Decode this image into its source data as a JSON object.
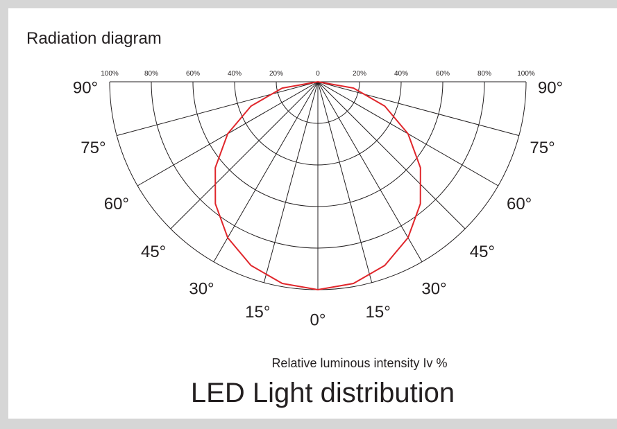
{
  "chart_data": {
    "type": "polar",
    "title": "Radiation diagram",
    "axis_label": "Relative luminous intensity Iv %",
    "caption": "LED Light distribution",
    "rlim": [
      0,
      100
    ],
    "rticks": [
      {
        "value": 0,
        "label": "0"
      },
      {
        "value": 20,
        "label": "20%"
      },
      {
        "value": 40,
        "label": "40%"
      },
      {
        "value": 60,
        "label": "60%"
      },
      {
        "value": 80,
        "label": "80%"
      },
      {
        "value": 100,
        "label": "100%"
      }
    ],
    "thetaticks": [
      {
        "value": 0,
        "label": "0°"
      },
      {
        "value": 15,
        "label": "15°"
      },
      {
        "value": 30,
        "label": "30°"
      },
      {
        "value": 45,
        "label": "45°"
      },
      {
        "value": 60,
        "label": "60°"
      },
      {
        "value": 75,
        "label": "75°"
      },
      {
        "value": 90,
        "label": "90°"
      }
    ],
    "series": [
      {
        "color": "#e0262b",
        "theta": [
          -90,
          -80,
          -70,
          -60,
          -50,
          -40,
          -30,
          -20,
          -10,
          0,
          10,
          20,
          30,
          40,
          50,
          60,
          70,
          80,
          90
        ],
        "values": [
          0,
          17.4,
          34.2,
          50,
          64.3,
          76.6,
          86.6,
          94,
          98.5,
          100,
          98.5,
          94,
          86.6,
          76.6,
          64.3,
          50,
          34.2,
          17.4,
          0
        ]
      }
    ]
  }
}
